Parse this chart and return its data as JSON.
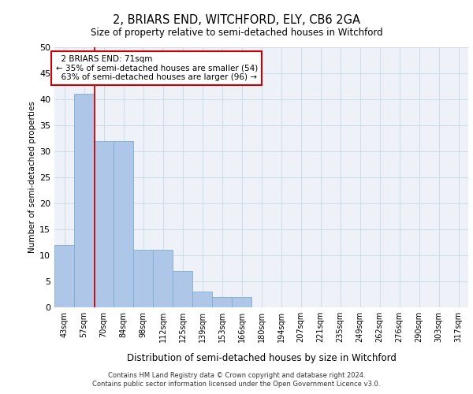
{
  "title_line1": "2, BRIARS END, WITCHFORD, ELY, CB6 2GA",
  "title_line2": "Size of property relative to semi-detached houses in Witchford",
  "xlabel": "Distribution of semi-detached houses by size in Witchford",
  "ylabel": "Number of semi-detached properties",
  "categories": [
    "43sqm",
    "57sqm",
    "70sqm",
    "84sqm",
    "98sqm",
    "112sqm",
    "125sqm",
    "139sqm",
    "153sqm",
    "166sqm",
    "180sqm",
    "194sqm",
    "207sqm",
    "221sqm",
    "235sqm",
    "249sqm",
    "262sqm",
    "276sqm",
    "290sqm",
    "303sqm",
    "317sqm"
  ],
  "values": [
    12,
    41,
    32,
    32,
    11,
    11,
    7,
    3,
    2,
    2,
    0,
    0,
    0,
    0,
    0,
    0,
    0,
    0,
    0,
    0,
    0
  ],
  "bar_color": "#aec6e8",
  "bar_edge_color": "#7bafd4",
  "ylim": [
    0,
    50
  ],
  "yticks": [
    0,
    5,
    10,
    15,
    20,
    25,
    30,
    35,
    40,
    45,
    50
  ],
  "property_label": "2 BRIARS END: 71sqm",
  "pct_smaller": 35,
  "pct_larger": 63,
  "n_smaller": 54,
  "n_larger": 96,
  "vline_color": "#cc0000",
  "annotation_box_color": "#cc0000",
  "footnote1": "Contains HM Land Registry data © Crown copyright and database right 2024.",
  "footnote2": "Contains public sector information licensed under the Open Government Licence v3.0.",
  "grid_color": "#d0dce8",
  "bg_color": "#eef2f8"
}
